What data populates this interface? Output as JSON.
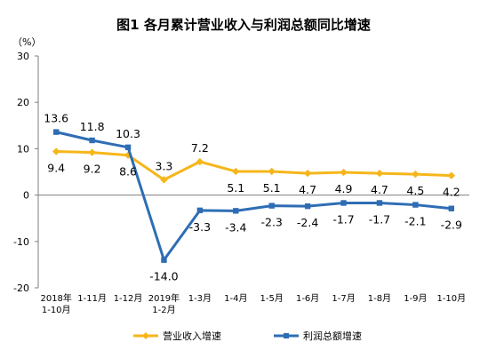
{
  "chart_data": {
    "type": "line",
    "title": "图1  各月累计营业收入与利润总额同比增速",
    "y_unit": "（%）",
    "ylim": [
      -20,
      30
    ],
    "yticks": [
      -20,
      -10,
      0,
      10,
      20,
      30
    ],
    "grid": false,
    "legend_position": "bottom",
    "categories": [
      [
        "2018年",
        "1-10月"
      ],
      [
        "1-11月"
      ],
      [
        "1-12月"
      ],
      [
        "2019年",
        "1-2月"
      ],
      [
        "1-3月"
      ],
      [
        "1-4月"
      ],
      [
        "1-5月"
      ],
      [
        "1-6月"
      ],
      [
        "1-7月"
      ],
      [
        "1-8月"
      ],
      [
        "1-9月"
      ],
      [
        "1-10月"
      ]
    ],
    "series": [
      {
        "name": "营业收入增速",
        "color": "#f6b61a",
        "marker": "diamond",
        "values": [
          9.4,
          9.2,
          8.6,
          3.3,
          7.2,
          5.1,
          5.1,
          4.7,
          4.9,
          4.7,
          4.5,
          4.2
        ],
        "labels": [
          "9.4",
          "9.2",
          "8.6",
          "3.3",
          "7.2",
          "5.1",
          "5.1",
          "4.7",
          "4.9",
          "4.7",
          "4.5",
          "4.2"
        ]
      },
      {
        "name": "利润总额增速",
        "color": "#2e6db4",
        "marker": "square",
        "values": [
          13.6,
          11.8,
          10.3,
          -14.0,
          -3.3,
          -3.4,
          -2.3,
          -2.4,
          -1.7,
          -1.7,
          -2.1,
          -2.9
        ],
        "labels": [
          "13.6",
          "11.8",
          "10.3",
          "-14.0",
          "-3.3",
          "-3.4",
          "-2.3",
          "-2.4",
          "-1.7",
          "-1.7",
          "-2.1",
          "-2.9"
        ]
      }
    ]
  }
}
